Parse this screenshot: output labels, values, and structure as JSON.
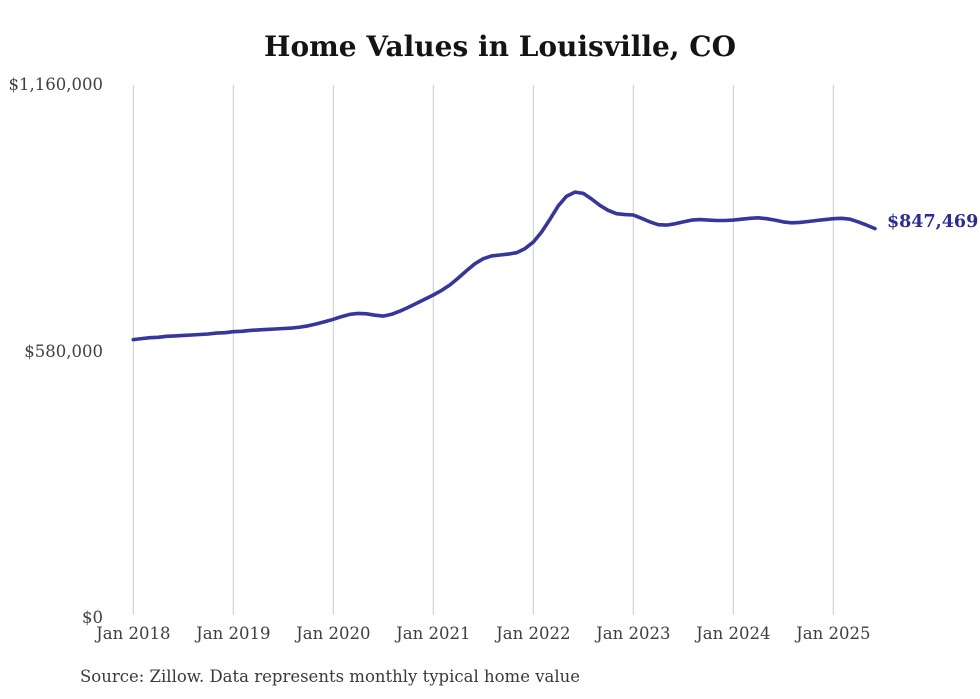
{
  "title": "Home Values in Louisville, CO",
  "source_note": "Source: Zillow. Data represents monthly typical home value",
  "end_label": "$847,469",
  "colors": {
    "line": "#37379b",
    "end_label": "#2b2b9b",
    "grid": "#cccccc",
    "axis_text": "#3f3f3f",
    "title_text": "#141414",
    "background": "#ffffff"
  },
  "y_axis": {
    "labels": [
      {
        "text": "$1,160,000",
        "value": 1160000
      },
      {
        "text": "$580,000",
        "value": 580000
      },
      {
        "text": "$0",
        "value": 0
      }
    ]
  },
  "x_axis": {
    "labels": [
      {
        "text": "Jan 2018",
        "month_index": 0
      },
      {
        "text": "Jan 2019",
        "month_index": 12
      },
      {
        "text": "Jan 2020",
        "month_index": 24
      },
      {
        "text": "Jan 2021",
        "month_index": 36
      },
      {
        "text": "Jan 2022",
        "month_index": 48
      },
      {
        "text": "Jan 2023",
        "month_index": 60
      },
      {
        "text": "Jan 2024",
        "month_index": 72
      },
      {
        "text": "Jan 2025",
        "month_index": 84
      }
    ]
  },
  "chart_data": {
    "type": "line",
    "title": "Home Values in Louisville, CO",
    "xlabel": "",
    "ylabel": "",
    "ylim": [
      0,
      1160000
    ],
    "grid": "vertical-only",
    "legend": "none",
    "final_value_label": "$847,469",
    "x": [
      "2018-01",
      "2018-02",
      "2018-03",
      "2018-04",
      "2018-05",
      "2018-06",
      "2018-07",
      "2018-08",
      "2018-09",
      "2018-10",
      "2018-11",
      "2018-12",
      "2019-01",
      "2019-02",
      "2019-03",
      "2019-04",
      "2019-05",
      "2019-06",
      "2019-07",
      "2019-08",
      "2019-09",
      "2019-10",
      "2019-11",
      "2019-12",
      "2020-01",
      "2020-02",
      "2020-03",
      "2020-04",
      "2020-05",
      "2020-06",
      "2020-07",
      "2020-08",
      "2020-09",
      "2020-10",
      "2020-11",
      "2020-12",
      "2021-01",
      "2021-02",
      "2021-03",
      "2021-04",
      "2021-05",
      "2021-06",
      "2021-07",
      "2021-08",
      "2021-09",
      "2021-10",
      "2021-11",
      "2021-12",
      "2022-01",
      "2022-02",
      "2022-03",
      "2022-04",
      "2022-05",
      "2022-06",
      "2022-07",
      "2022-08",
      "2022-09",
      "2022-10",
      "2022-11",
      "2022-12",
      "2023-01",
      "2023-02",
      "2023-03",
      "2023-04",
      "2023-05",
      "2023-06",
      "2023-07",
      "2023-08",
      "2023-09",
      "2023-10",
      "2023-11",
      "2023-12",
      "2024-01",
      "2024-02",
      "2024-03",
      "2024-04",
      "2024-05",
      "2024-06",
      "2024-07",
      "2024-08",
      "2024-09",
      "2024-10",
      "2024-11",
      "2024-12",
      "2025-01",
      "2025-02",
      "2025-03",
      "2025-04",
      "2025-05",
      "2025-06"
    ],
    "values": [
      606000,
      608000,
      610000,
      611000,
      613000,
      614000,
      615000,
      616000,
      617000,
      618000,
      620000,
      621000,
      623000,
      624000,
      626000,
      627000,
      628000,
      629000,
      630000,
      631000,
      633000,
      636000,
      640000,
      645000,
      650000,
      656000,
      661000,
      663000,
      662000,
      659000,
      657000,
      661000,
      668000,
      676000,
      685000,
      694000,
      703000,
      713000,
      725000,
      740000,
      756000,
      771000,
      782000,
      788000,
      790000,
      792000,
      795000,
      804000,
      818000,
      840000,
      868000,
      897000,
      918000,
      927000,
      924000,
      912000,
      898000,
      887000,
      880000,
      878000,
      877000,
      870000,
      862000,
      856000,
      855000,
      858000,
      862000,
      866000,
      867000,
      866000,
      865000,
      865000,
      866000,
      868000,
      870000,
      871000,
      869000,
      866000,
      862000,
      860000,
      861000,
      863000,
      865000,
      867000,
      869000,
      870000,
      868000,
      862000,
      855000,
      847469
    ]
  }
}
